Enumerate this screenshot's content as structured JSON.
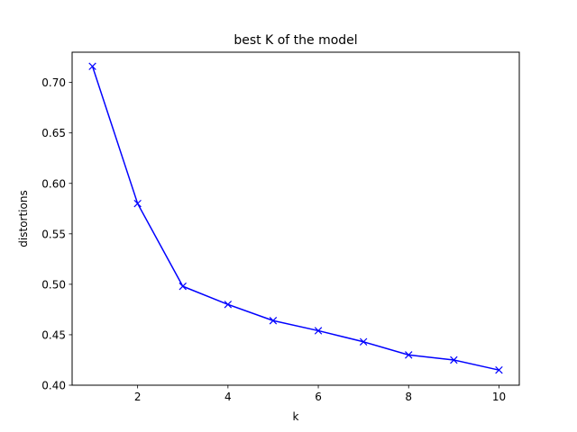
{
  "chart_data": {
    "type": "line",
    "title": "best K of the model",
    "xlabel": "k",
    "ylabel": "distortions",
    "xlim": [
      0.55,
      10.45
    ],
    "ylim": [
      0.4,
      0.73
    ],
    "x_ticks": [
      2,
      4,
      6,
      8,
      10
    ],
    "y_ticks": [
      0.4,
      0.45,
      0.5,
      0.55,
      0.6,
      0.65,
      0.7
    ],
    "x_tick_labels": [
      "2",
      "4",
      "6",
      "8",
      "10"
    ],
    "y_tick_labels": [
      "0.40",
      "0.45",
      "0.50",
      "0.55",
      "0.60",
      "0.65",
      "0.70"
    ],
    "grid": false,
    "series": [
      {
        "color": "#0000ff",
        "marker": "x",
        "x": [
          1,
          2,
          3,
          4,
          5,
          6,
          7,
          8,
          9,
          10
        ],
        "y": [
          0.716,
          0.58,
          0.498,
          0.48,
          0.464,
          0.454,
          0.443,
          0.43,
          0.425,
          0.415
        ]
      }
    ]
  }
}
